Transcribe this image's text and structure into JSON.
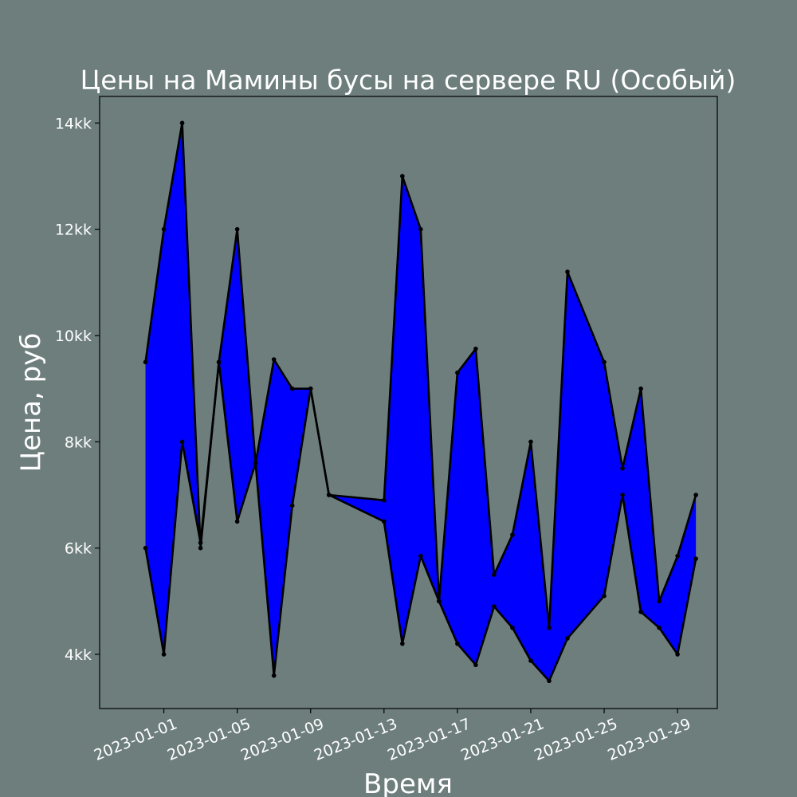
{
  "chart_data": {
    "type": "area",
    "title": "Цены на Мамины бусы на сервере RU (Особый)",
    "xlabel": "Время",
    "ylabel": "Цена, руб",
    "x": [
      "2022-12-31",
      "2023-01-01",
      "2023-01-02",
      "2023-01-03",
      "2023-01-04",
      "2023-01-05",
      "2023-01-06",
      "2023-01-07",
      "2023-01-08",
      "2023-01-09",
      "2023-01-10",
      "2023-01-13",
      "2023-01-14",
      "2023-01-15",
      "2023-01-16",
      "2023-01-17",
      "2023-01-18",
      "2023-01-19",
      "2023-01-20",
      "2023-01-21",
      "2023-01-22",
      "2023-01-23",
      "2023-01-25",
      "2023-01-26",
      "2023-01-27",
      "2023-01-28",
      "2023-01-29",
      "2023-01-30"
    ],
    "series": [
      {
        "values": [
          9500,
          12000,
          14000,
          6000,
          9500,
          12000,
          7600,
          9550,
          9000,
          9000,
          7000,
          6900,
          13000,
          12000,
          5000,
          9300,
          9750,
          5500,
          6250,
          8000,
          4500,
          11200,
          9500,
          7500,
          9000,
          5000,
          5850,
          7000
        ]
      },
      {
        "values": [
          6000,
          4000,
          8000,
          6100,
          9500,
          6500,
          7600,
          3600,
          6800,
          9000,
          7000,
          6500,
          4200,
          5850,
          5000,
          4200,
          3800,
          4900,
          4500,
          3880,
          3500,
          4300,
          5100,
          7000,
          4800,
          4500,
          4000,
          5800
        ]
      }
    ],
    "xticks": [
      "2023-01-01",
      "2023-01-05",
      "2023-01-09",
      "2023-01-13",
      "2023-01-17",
      "2023-01-21",
      "2023-01-25",
      "2023-01-29"
    ],
    "yticks": [
      4000,
      6000,
      8000,
      10000,
      12000,
      14000
    ],
    "ytick_labels": [
      "4kk",
      "6kk",
      "8kk",
      "10kk",
      "12kk",
      "14kk"
    ],
    "ylim": [
      2980,
      14500
    ],
    "xlim": [
      "2022-12-28 12:00",
      "2023-01-31 04:00"
    ],
    "fill_color": "#0000ff",
    "line_color": "#000000",
    "background_color": "#6d7e7d",
    "grid": false,
    "legend": "none"
  }
}
